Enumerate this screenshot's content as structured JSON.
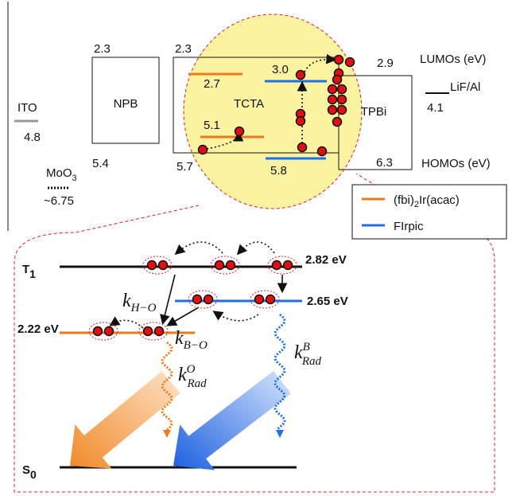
{
  "upper": {
    "ito": {
      "label": "ITO",
      "homo": "4.8"
    },
    "moo3": {
      "label": {
        "base": "MoO",
        "sub": "3"
      },
      "level": "~6.75"
    },
    "npb": {
      "label": "NPB",
      "lumo": "2.3",
      "homo": "5.4"
    },
    "tcta": {
      "label": "TCTA",
      "lumo": "2.3",
      "homo": "5.7"
    },
    "fbi_levels": {
      "lumo": "2.7",
      "homo": "5.1"
    },
    "firpic_levels": {
      "lumo": "3.0",
      "homo": "5.8"
    },
    "tpbi": {
      "label": "TPBi",
      "lumo": "2.9",
      "homo": "6.3"
    },
    "cathode": {
      "label": "LiF/Al",
      "level": "4.1"
    },
    "axis_labels": {
      "lumo": "LUMOs (eV)",
      "homo": "HOMOs (eV)"
    }
  },
  "legend": [
    {
      "label": {
        "pre": "(fbi)",
        "sub": "2",
        "post": "Ir(acac)"
      },
      "color": "#f07a1a"
    },
    {
      "label": "FIrpic",
      "color": "#1f6fe8"
    }
  ],
  "lower": {
    "t1": {
      "base": "T",
      "sub": "1"
    },
    "s0": {
      "base": "S",
      "sub": "0"
    },
    "t1_energy": "2.82 eV",
    "firpic_energy": "2.65 eV",
    "fbi_energy": "2.22 eV",
    "k_ho": {
      "base": "k",
      "sub": "H−O"
    },
    "k_bo": {
      "base": "k",
      "sub": "B−O"
    },
    "k_rad_o": {
      "base": "k",
      "sup": "O",
      "sub": "Rad"
    },
    "k_rad_b": {
      "base": "k",
      "sup": "B",
      "sub": "Rad"
    }
  }
}
